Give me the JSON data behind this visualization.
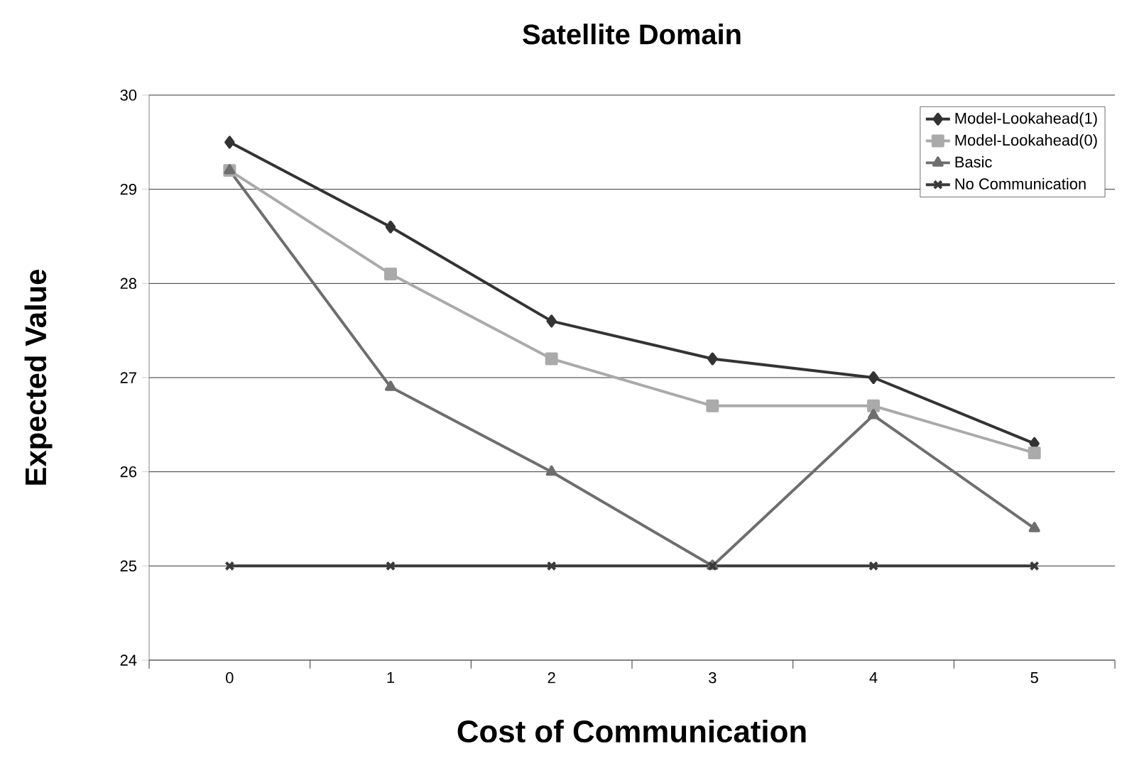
{
  "chart_data": {
    "type": "line",
    "title": "Satellite Domain",
    "xlabel": "Cost of Communication",
    "ylabel": "Expected Value",
    "categories": [
      "0",
      "1",
      "2",
      "3",
      "4",
      "5"
    ],
    "series": [
      {
        "name": "Model-Lookahead(1)",
        "color": "#333333",
        "marker": "diamond",
        "values": [
          29.5,
          28.6,
          27.6,
          27.2,
          27.0,
          26.3
        ]
      },
      {
        "name": "Model-Lookahead(0)",
        "color": "#aaaaaa",
        "marker": "square",
        "values": [
          29.2,
          28.1,
          27.2,
          26.7,
          26.7,
          26.2
        ]
      },
      {
        "name": "Basic",
        "color": "#6e6e6e",
        "marker": "triangle",
        "values": [
          29.2,
          26.9,
          26.0,
          25.0,
          26.6,
          25.4
        ]
      },
      {
        "name": "No Communication",
        "color": "#3a3a3a",
        "marker": "cross",
        "values": [
          25,
          25,
          25,
          25,
          25,
          25
        ]
      }
    ],
    "ylim": [
      24,
      30
    ],
    "yticks": [
      24,
      25,
      26,
      27,
      28,
      29,
      30
    ],
    "grid": "y",
    "legend": "top right",
    "line_style": "solid"
  }
}
